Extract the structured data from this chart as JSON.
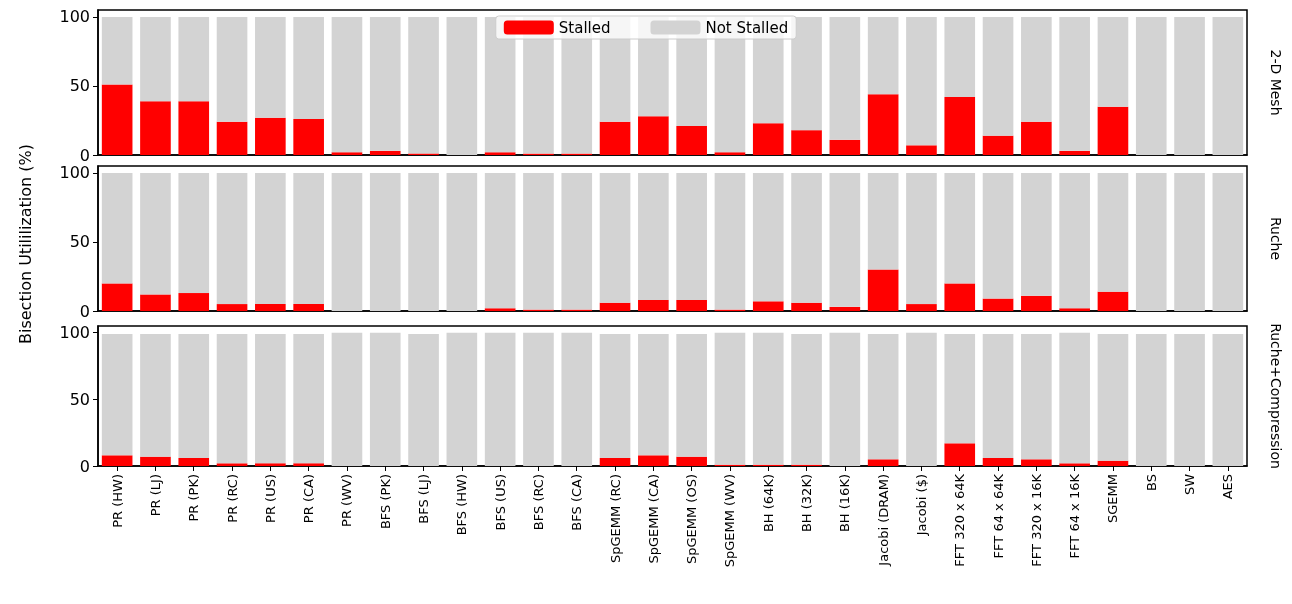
{
  "chart_data": [
    {
      "type": "bar",
      "y2label": "2-D Mesh",
      "stacked": true,
      "legend": "top",
      "tick_labels": "y",
      "grid": false,
      "ylim": [
        0,
        105
      ],
      "yticks": [
        0,
        50,
        100
      ],
      "categories": [
        null,
        null,
        null,
        null,
        null,
        null,
        null,
        null,
        null,
        null,
        null,
        null,
        null,
        null,
        null,
        null,
        null,
        null,
        null,
        null,
        null,
        null,
        null,
        null,
        null,
        null,
        null,
        null,
        null,
        null
      ],
      "series": [
        {
          "name": "Stalled",
          "color": "#ff0000",
          "values": [
            51,
            39,
            39,
            24,
            27,
            26,
            2,
            3,
            1,
            0,
            2,
            1,
            1,
            24,
            28,
            21,
            2,
            23,
            18,
            11,
            44,
            7,
            42,
            14,
            24,
            3,
            35,
            0,
            0,
            0
          ]
        },
        {
          "name": "Not Stalled",
          "color": "#d3d3d3",
          "values": [
            49,
            61,
            61,
            76,
            73,
            74,
            98,
            97,
            99,
            100,
            98,
            99,
            99,
            76,
            72,
            79,
            98,
            77,
            82,
            89,
            56,
            93,
            58,
            86,
            76,
            97,
            65,
            100,
            100,
            100
          ]
        }
      ]
    },
    {
      "type": "bar",
      "y2label": "Ruche",
      "ylabel": "Bisection Utililization (%)",
      "stacked": true,
      "legend": false,
      "tick_labels": "y",
      "grid": false,
      "ylim": [
        0,
        105
      ],
      "yticks": [
        0,
        50,
        100
      ],
      "categories": [
        null,
        null,
        null,
        null,
        null,
        null,
        null,
        null,
        null,
        null,
        null,
        null,
        null,
        null,
        null,
        null,
        null,
        null,
        null,
        null,
        null,
        null,
        null,
        null,
        null,
        null,
        null,
        null,
        null,
        null
      ],
      "series": [
        {
          "color": "#ff0000",
          "values": [
            20,
            12,
            13,
            5,
            5,
            5,
            0,
            0,
            0,
            0,
            2,
            1,
            1,
            6,
            8,
            8,
            1,
            7,
            6,
            3,
            30,
            5,
            20,
            9,
            11,
            2,
            14,
            0,
            0,
            0
          ]
        },
        {
          "color": "#d3d3d3",
          "values": [
            80,
            88,
            87,
            95,
            95,
            95,
            100,
            100,
            100,
            100,
            98,
            99,
            99,
            94,
            92,
            92,
            99,
            93,
            94,
            97,
            70,
            95,
            80,
            91,
            89,
            98,
            86,
            100,
            100,
            100
          ]
        }
      ]
    },
    {
      "type": "bar",
      "y2label": "Ruche+Compression",
      "stacked": true,
      "legend": false,
      "grid": false,
      "ylim": [
        0,
        105
      ],
      "yticks": [
        0,
        50,
        100
      ],
      "categories": [
        "PR (HW)",
        "PR (LJ)",
        "PR (PK)",
        "PR (RC)",
        "PR (US)",
        "PR (CA)",
        "PR (WV)",
        "BFS (PK)",
        "BFS (LJ)",
        "BFS (HW)",
        "BFS (US)",
        "BFS (RC)",
        "BFS (CA)",
        "SpGEMM (RC)",
        "SpGEMM (CA)",
        "SpGEMM (OS)",
        "SpGEMM (WV)",
        "BH (64K)",
        "BH (32K)",
        "BH (16K)",
        "Jacobi (DRAM)",
        "Jacobi ($)",
        "FFT 320 x 64K",
        "FFT 64 x 64K",
        "FFT 320 x 16K",
        "FFT 64 x 16K",
        "SGEMM",
        "BS",
        "SW",
        "AES"
      ],
      "series": [
        {
          "color": "#ff0000",
          "values": [
            8,
            7,
            6,
            2,
            2,
            2,
            0,
            0,
            0,
            0,
            0,
            0,
            0,
            6,
            8,
            7,
            1,
            1,
            1,
            0,
            5,
            0,
            17,
            6,
            5,
            2,
            4,
            0,
            0,
            0
          ]
        },
        {
          "color": "#d3d3d3",
          "values": [
            91,
            92,
            93,
            97,
            97,
            97,
            100,
            100,
            99,
            100,
            100,
            100,
            100,
            93,
            91,
            92,
            99,
            99,
            98,
            100,
            94,
            100,
            82,
            93,
            94,
            98,
            95,
            99,
            99,
            99
          ]
        }
      ]
    }
  ]
}
